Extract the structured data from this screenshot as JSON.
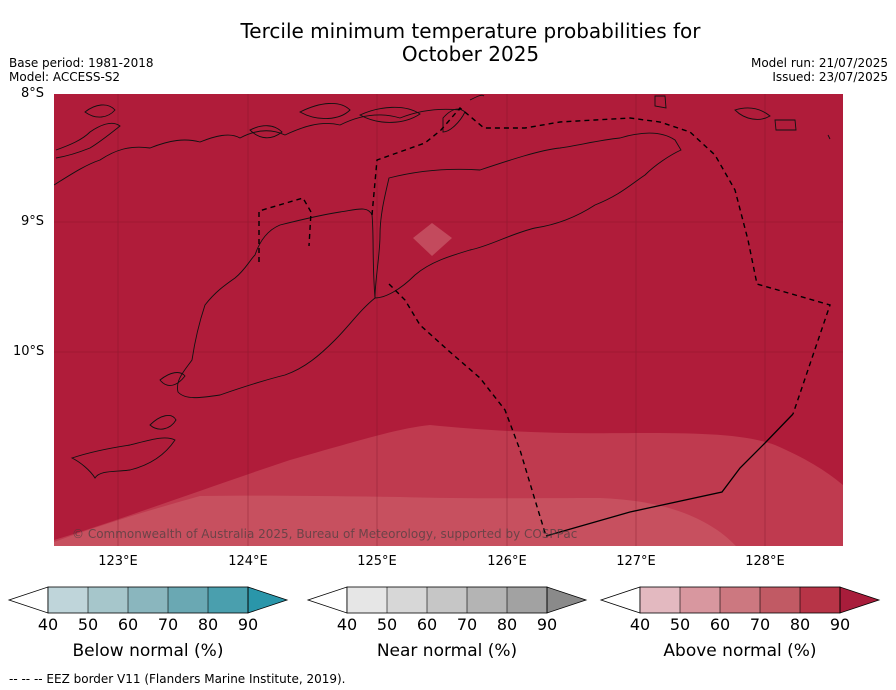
{
  "title_line1": "Tercile minimum temperature probabilities for",
  "title_line2": "October 2025",
  "base_period": "Base period: 1981-2018",
  "model": "Model: ACCESS-S2",
  "model_run": "Model run: 21/07/2025",
  "issued": "Issued: 23/07/2025",
  "lat_labels": [
    "8°S",
    "9°S",
    "10°S"
  ],
  "lon_labels": [
    "123°E",
    "124°E",
    "125°E",
    "126°E",
    "127°E",
    "128°E"
  ],
  "copyright": "© Commonwealth of Australia 2025, Bureau of Meteorology, supported by COSPPac",
  "colorbars": {
    "below": {
      "label": "Below normal (%)",
      "ticks": [
        "40",
        "50",
        "60",
        "70",
        "80",
        "90"
      ],
      "colors": [
        "#ffffff",
        "#bfd5da",
        "#a6c6cb",
        "#8ab6be",
        "#6aa8b3",
        "#4a9fae",
        "#2a96aa"
      ]
    },
    "near": {
      "label": "Near normal (%)",
      "ticks": [
        "40",
        "50",
        "60",
        "70",
        "80",
        "90"
      ],
      "colors": [
        "#ffffff",
        "#e6e6e6",
        "#d7d7d7",
        "#c6c6c6",
        "#b4b4b4",
        "#a2a2a2",
        "#8a8a8a"
      ]
    },
    "above": {
      "label": "Above normal (%)",
      "ticks": [
        "40",
        "50",
        "60",
        "70",
        "80",
        "90"
      ],
      "colors": [
        "#ffffff",
        "#e3b9c0",
        "#d8979f",
        "#cc7880",
        "#c15a64",
        "#b73447",
        "#a81d3b"
      ]
    }
  },
  "footer": "--  --  -- EEZ border V11 (Flanders Marine Institute, 2019).",
  "map_colors": {
    "above90": "#b01c3a",
    "above80": "#bf3a4f",
    "above70": "#c7505f"
  }
}
